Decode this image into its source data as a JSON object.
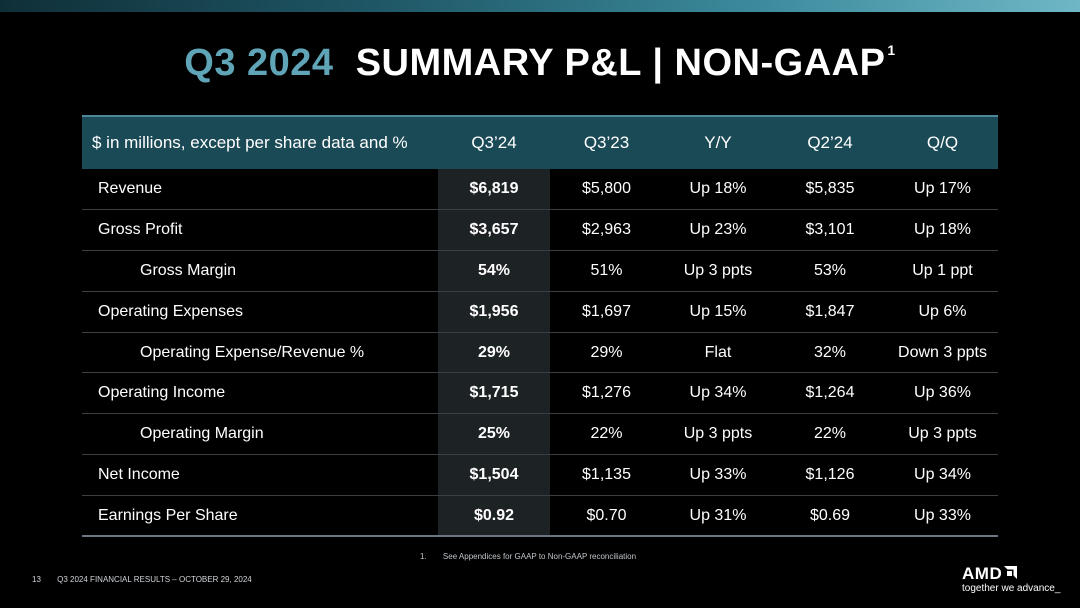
{
  "slide": {
    "title_accent": "Q3 2024",
    "title_main": "SUMMARY P&L  |  NON-GAAP",
    "title_superscript": "1"
  },
  "table": {
    "headers": [
      "$ in millions, except per share data and %",
      "Q3’24",
      "Q3’23",
      "Y/Y",
      "Q2’24",
      "Q/Q"
    ],
    "rows": [
      {
        "label": "Revenue",
        "q3_24": "$6,819",
        "q3_23": "$5,800",
        "yy": "Up 18%",
        "q2_24": "$5,835",
        "qq": "Up 17%"
      },
      {
        "label": "Gross Profit",
        "q3_24": "$3,657",
        "q3_23": "$2,963",
        "yy": "Up 23%",
        "q2_24": "$3,101",
        "qq": "Up 18%"
      },
      {
        "label": "Gross Margin",
        "q3_24": "54%",
        "q3_23": "51%",
        "yy": "Up 3 ppts",
        "q2_24": "53%",
        "qq": "Up 1 ppt"
      },
      {
        "label": "Operating Expenses",
        "q3_24": "$1,956",
        "q3_23": "$1,697",
        "yy": "Up 15%",
        "q2_24": "$1,847",
        "qq": "Up 6%"
      },
      {
        "label": "Operating Expense/Revenue %",
        "q3_24": "29%",
        "q3_23": "29%",
        "yy": "Flat",
        "q2_24": "32%",
        "qq": "Down 3 ppts"
      },
      {
        "label": "Operating Income",
        "q3_24": "$1,715",
        "q3_23": "$1,276",
        "yy": "Up 34%",
        "q2_24": "$1,264",
        "qq": "Up 36%"
      },
      {
        "label": "Operating Margin",
        "q3_24": "25%",
        "q3_23": "22%",
        "yy": "Up 3 ppts",
        "q2_24": "22%",
        "qq": "Up 3 ppts"
      },
      {
        "label": "Net Income",
        "q3_24": "$1,504",
        "q3_23": "$1,135",
        "yy": "Up 33%",
        "q2_24": "$1,126",
        "qq": "Up 34%"
      },
      {
        "label": "Earnings Per Share",
        "q3_24": "$0.92",
        "q3_23": "$0.70",
        "yy": "Up 31%",
        "q2_24": "$0.69",
        "qq": "Up 33%"
      }
    ]
  },
  "footnote": {
    "number": "1.",
    "text": "See Appendices for GAAP to Non-GAAP reconciliation"
  },
  "footer": {
    "page_number": "13",
    "text": "Q3 2024 FINANCIAL RESULTS – OCTOBER 29, 2024"
  },
  "logo": {
    "brand": "AMD",
    "tagline": "together we advance_",
    "icon": "amd-arrow-icon"
  },
  "colors": {
    "accent": "#5fa5b7",
    "header_bg": "#1b4a57",
    "highlight_col": "#1d2224",
    "background": "#000000"
  }
}
